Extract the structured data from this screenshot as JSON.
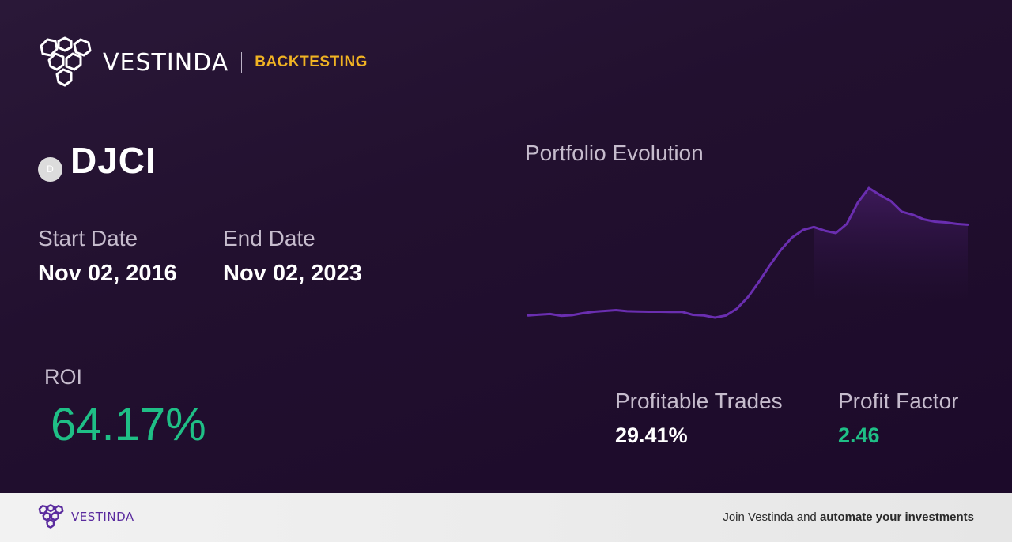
{
  "brand": {
    "name": "VESTINDA",
    "section": "BACKTESTING"
  },
  "asset": {
    "badge": "D",
    "name": "DJCI"
  },
  "dates": {
    "start_label": "Start Date",
    "start_value": "Nov 02, 2016",
    "end_label": "End Date",
    "end_value": "Nov 02, 2023"
  },
  "roi": {
    "label": "ROI",
    "value": "64.17%"
  },
  "chart": {
    "title": "Portfolio Evolution",
    "line_color": "#6a2eb0"
  },
  "chart_data": {
    "type": "area",
    "series": [
      {
        "values": [
          100,
          100.5,
          101,
          99.8,
          100.2,
          101.5,
          102.5,
          103,
          103.5,
          102.8,
          102.6,
          102.5,
          102.5,
          102.4,
          102.4,
          100.4,
          100,
          98.6,
          100,
          104.5,
          112,
          122,
          133,
          143,
          151,
          156,
          158,
          155.5,
          154,
          160,
          174,
          183.5,
          179,
          175,
          168,
          166,
          163,
          161.5,
          161,
          160,
          159.5
        ]
      }
    ]
  },
  "stats": {
    "profitable_trades_label": "Profitable Trades",
    "profitable_trades_value": "29.41%",
    "profit_factor_label": "Profit Factor",
    "profit_factor_value": "2.46"
  },
  "footer": {
    "brand": "VESTINDA",
    "cta_prefix": "Join Vestinda and ",
    "cta_bold": "automate your investments"
  },
  "colors": {
    "accent_yellow": "#f0b323",
    "positive_green": "#1fbf86",
    "brand_purple": "#5a2b9e"
  }
}
